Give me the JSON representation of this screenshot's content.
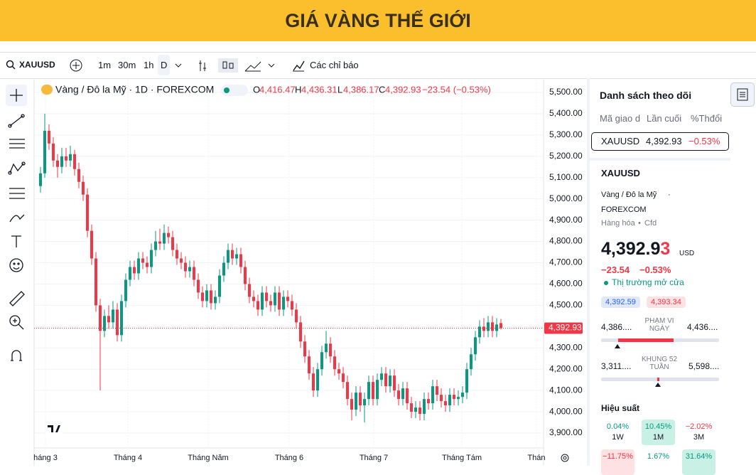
{
  "header": {
    "title": "GIÁ VÀNG THẾ GIỚI"
  },
  "toolbar": {
    "symbol": "XAUUSD",
    "intervals": [
      "1m",
      "30m",
      "1h",
      "D"
    ],
    "indicators": "Các chỉ báo"
  },
  "chart_data": {
    "type": "candlestick",
    "legend": {
      "name": "Vàng / Đô la Mỹ · 1D · FOREXCOM",
      "o_key": "O",
      "o": "4,416.47",
      "h_key": "H",
      "h": "4,436.31",
      "l_key": "L",
      "l": "4,386.17",
      "c_key": "C",
      "c": "4,392.93",
      "change": "−23.54 (−0.53%)"
    },
    "candle_fields": [
      "open",
      "high",
      "low",
      "close"
    ],
    "up_color": "#089981",
    "down_color": "#f23645",
    "candles": [
      [
        5060,
        5150,
        5030,
        5120
      ],
      [
        5120,
        5400,
        5100,
        5320
      ],
      [
        5320,
        5350,
        5230,
        5260
      ],
      [
        5260,
        5290,
        5150,
        5180
      ],
      [
        5180,
        5210,
        5100,
        5150
      ],
      [
        5150,
        5240,
        5120,
        5200
      ],
      [
        5200,
        5240,
        5150,
        5180
      ],
      [
        5180,
        5250,
        5150,
        5210
      ],
      [
        5210,
        5230,
        5110,
        5140
      ],
      [
        5140,
        5170,
        5050,
        5080
      ],
      [
        5080,
        5110,
        4990,
        5020
      ],
      [
        5020,
        5050,
        4820,
        4850
      ],
      [
        4850,
        4880,
        4690,
        4720
      ],
      [
        4720,
        4750,
        4470,
        4500
      ],
      [
        4500,
        4530,
        4100,
        4380
      ],
      [
        4380,
        4480,
        4350,
        4450
      ],
      [
        4450,
        4500,
        4390,
        4420
      ],
      [
        4420,
        4520,
        4390,
        4480
      ],
      [
        4480,
        4510,
        4330,
        4360
      ],
      [
        4360,
        4550,
        4330,
        4520
      ],
      [
        4520,
        4650,
        4490,
        4620
      ],
      [
        4620,
        4710,
        4590,
        4680
      ],
      [
        4680,
        4710,
        4620,
        4650
      ],
      [
        4650,
        4750,
        4620,
        4720
      ],
      [
        4720,
        4750,
        4670,
        4700
      ],
      [
        4700,
        4730,
        4650,
        4680
      ],
      [
        4680,
        4790,
        4650,
        4760
      ],
      [
        4760,
        4850,
        4730,
        4800
      ],
      [
        4800,
        4860,
        4760,
        4790
      ],
      [
        4790,
        4880,
        4760,
        4840
      ],
      [
        4840,
        4870,
        4790,
        4820
      ],
      [
        4820,
        4850,
        4730,
        4760
      ],
      [
        4760,
        4790,
        4690,
        4720
      ],
      [
        4720,
        4750,
        4670,
        4700
      ],
      [
        4700,
        4730,
        4630,
        4660
      ],
      [
        4660,
        4710,
        4630,
        4680
      ],
      [
        4680,
        4710,
        4590,
        4620
      ],
      [
        4620,
        4650,
        4530,
        4560
      ],
      [
        4560,
        4590,
        4490,
        4520
      ],
      [
        4520,
        4600,
        4490,
        4570
      ],
      [
        4570,
        4600,
        4480,
        4510
      ],
      [
        4510,
        4570,
        4480,
        4540
      ],
      [
        4540,
        4670,
        4510,
        4640
      ],
      [
        4640,
        4730,
        4610,
        4700
      ],
      [
        4700,
        4790,
        4670,
        4760
      ],
      [
        4760,
        4790,
        4690,
        4720
      ],
      [
        4720,
        4770,
        4690,
        4740
      ],
      [
        4740,
        4770,
        4650,
        4680
      ],
      [
        4680,
        4710,
        4570,
        4600
      ],
      [
        4600,
        4630,
        4510,
        4540
      ],
      [
        4540,
        4570,
        4490,
        4520
      ],
      [
        4520,
        4550,
        4450,
        4480
      ],
      [
        4480,
        4590,
        4450,
        4560
      ],
      [
        4560,
        4590,
        4490,
        4520
      ],
      [
        4520,
        4550,
        4470,
        4500
      ],
      [
        4500,
        4590,
        4470,
        4560
      ],
      [
        4560,
        4590,
        4450,
        4480
      ],
      [
        4480,
        4570,
        4450,
        4540
      ],
      [
        4540,
        4570,
        4490,
        4520
      ],
      [
        4520,
        4550,
        4450,
        4480
      ],
      [
        4480,
        4510,
        4390,
        4420
      ],
      [
        4420,
        4450,
        4300,
        4330
      ],
      [
        4330,
        4360,
        4230,
        4260
      ],
      [
        4260,
        4290,
        4150,
        4180
      ],
      [
        4180,
        4210,
        4070,
        4100
      ],
      [
        4100,
        4230,
        4070,
        4200
      ],
      [
        4200,
        4310,
        4170,
        4280
      ],
      [
        4280,
        4380,
        4250,
        4320
      ],
      [
        4320,
        4350,
        4230,
        4260
      ],
      [
        4260,
        4290,
        4170,
        4200
      ],
      [
        4200,
        4230,
        4150,
        4180
      ],
      [
        4180,
        4210,
        4110,
        4140
      ],
      [
        4140,
        4170,
        4030,
        4060
      ],
      [
        4060,
        4090,
        3960,
        4010
      ],
      [
        4010,
        4120,
        3980,
        4090
      ],
      [
        4090,
        4120,
        4000,
        4030
      ],
      [
        4030,
        4090,
        3950,
        4060
      ],
      [
        4060,
        4170,
        4030,
        4140
      ],
      [
        4140,
        4170,
        4030,
        4060
      ],
      [
        4060,
        4180,
        4030,
        4150
      ],
      [
        4150,
        4210,
        4120,
        4180
      ],
      [
        4180,
        4210,
        4090,
        4120
      ],
      [
        4120,
        4200,
        4090,
        4170
      ],
      [
        4170,
        4200,
        4070,
        4100
      ],
      [
        4100,
        4130,
        4030,
        4060
      ],
      [
        4060,
        4140,
        4030,
        4110
      ],
      [
        4110,
        4140,
        4010,
        4040
      ],
      [
        4040,
        4070,
        3970,
        4000
      ],
      [
        4000,
        4050,
        3970,
        4020
      ],
      [
        4020,
        4050,
        3960,
        3990
      ],
      [
        3990,
        4090,
        3960,
        4060
      ],
      [
        4060,
        4090,
        4010,
        4040
      ],
      [
        4040,
        4150,
        4010,
        4120
      ],
      [
        4120,
        4150,
        4050,
        4080
      ],
      [
        4080,
        4110,
        4020,
        4050
      ],
      [
        4050,
        4080,
        4000,
        4030
      ],
      [
        4030,
        4110,
        4000,
        4080
      ],
      [
        4080,
        4110,
        4030,
        4060
      ],
      [
        4060,
        4100,
        4030,
        4070
      ],
      [
        4070,
        4120,
        4040,
        4090
      ],
      [
        4090,
        4230,
        4060,
        4200
      ],
      [
        4200,
        4300,
        4170,
        4270
      ],
      [
        4270,
        4380,
        4240,
        4350
      ],
      [
        4350,
        4430,
        4320,
        4400
      ],
      [
        4400,
        4440,
        4350,
        4380
      ],
      [
        4380,
        4450,
        4350,
        4420
      ],
      [
        4420,
        4450,
        4350,
        4380
      ],
      [
        4380,
        4440,
        4350,
        4410
      ],
      [
        4416.47,
        4436.31,
        4386.17,
        4392.93
      ]
    ],
    "last_price_label": "4,392.93",
    "x_labels": [
      "háng 3",
      "Tháng 4",
      "Tháng Năm",
      "Tháng 6",
      "Tháng 7",
      "Tháng Tám",
      "Thán"
    ],
    "ylim": [
      3830,
      5560
    ],
    "yticks": [
      {
        "value": 3900,
        "label": "3,900.00"
      },
      {
        "value": 4000,
        "label": "4,000.00"
      },
      {
        "value": 4100,
        "label": "4,100.00"
      },
      {
        "value": 4200,
        "label": "4,200.00"
      },
      {
        "value": 4300,
        "label": "4,300.00"
      },
      {
        "value": 4400,
        "label": "4,400.00"
      },
      {
        "value": 4500,
        "label": "4,500.00"
      },
      {
        "value": 4600,
        "label": "4,600.00"
      },
      {
        "value": 4700,
        "label": "4,700.00"
      },
      {
        "value": 4800,
        "label": "4,800.00"
      },
      {
        "value": 4900,
        "label": "4,900.00"
      },
      {
        "value": 5000,
        "label": "5,000.00"
      },
      {
        "value": 5100,
        "label": "5,100.00"
      },
      {
        "value": 5200,
        "label": "5,200.00"
      },
      {
        "value": 5300,
        "label": "5,300.00"
      },
      {
        "value": 5400,
        "label": "5,400.00"
      },
      {
        "value": 5500,
        "label": "5,500.00"
      }
    ],
    "grid": true
  },
  "watchlist": {
    "title": "Danh sách theo dõi",
    "columns": [
      "Mã giao d",
      "Lần cuối",
      "%Thđổi"
    ],
    "row": [
      "XAUUSD",
      "4,392.93",
      "−0.53%"
    ]
  },
  "details": {
    "symbol": "XAUUSD",
    "name": "Vàng / Đô la Mỹ",
    "sep": "·",
    "exchange": "FOREXCOM",
    "kind": "Hàng hóa",
    "kind_sep": "•",
    "sub": "Cfd",
    "price_main": "4,392.9",
    "price_last": "3",
    "currency": "USD",
    "change": "−23.54",
    "change_pct": "−0.53%",
    "status": "Thị trường mở cửa",
    "bid": "4,392.59",
    "ask": "4,393.34",
    "day_low": "4,386....",
    "day_label": "PHẠM VI NGÀY",
    "day_high": "4,436....",
    "year_low": "3,311....",
    "year_label": "KHUNG 52 TUẦN",
    "year_high": "5,598....",
    "perf_title": "Hiệu suất",
    "perf": [
      [
        "0.04%",
        "1W"
      ],
      [
        "10.45%",
        "1M"
      ],
      [
        "−2.02%",
        "3M"
      ],
      [
        "−11.75%"
      ],
      [
        "1.67%"
      ],
      [
        "31.64%"
      ]
    ]
  }
}
